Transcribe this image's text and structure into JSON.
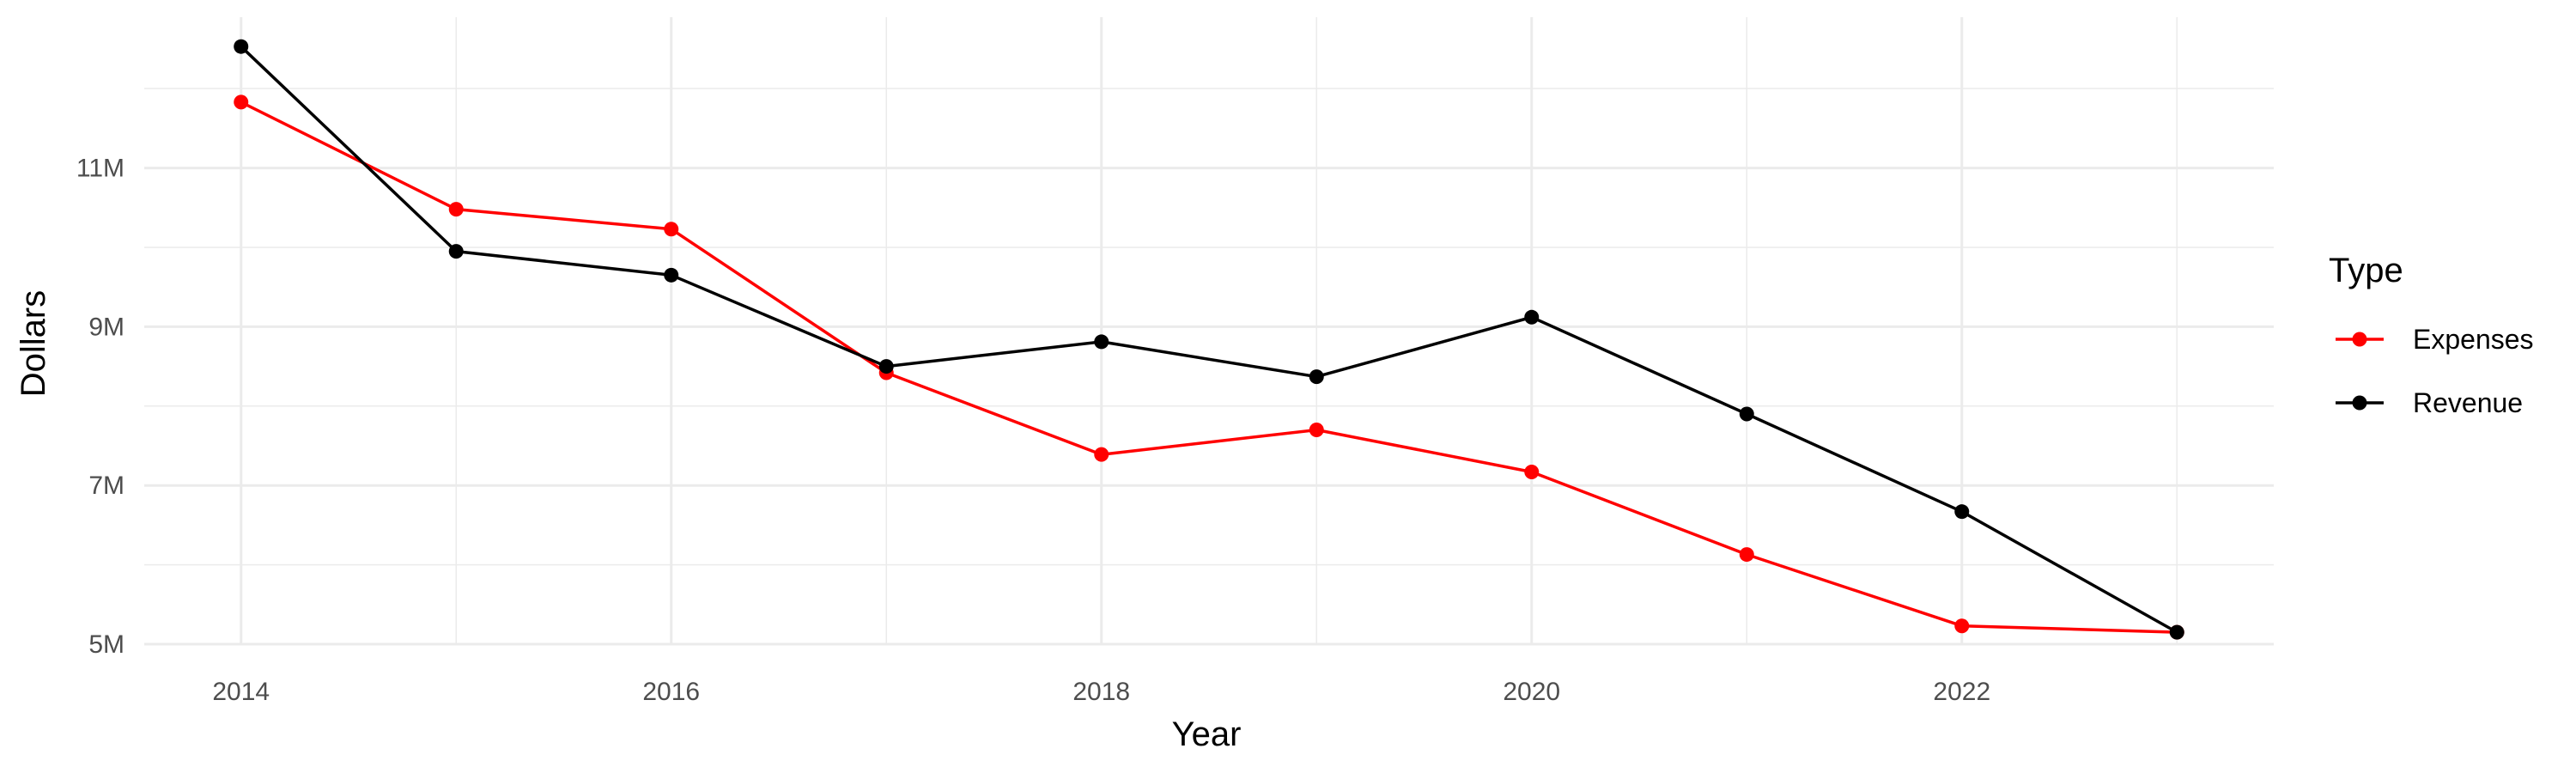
{
  "chart_data": {
    "type": "line",
    "title": "",
    "xlabel": "Year",
    "ylabel": "Dollars",
    "x": [
      2014,
      2015,
      2016,
      2017,
      2018,
      2019,
      2020,
      2021,
      2022,
      2023
    ],
    "x_ticks": [
      2014,
      2016,
      2018,
      2020,
      2022
    ],
    "x_tick_labels": [
      "2014",
      "2016",
      "2018",
      "2020",
      "2022"
    ],
    "xlim": [
      2013.55,
      2023.45
    ],
    "y_ticks": [
      5000000,
      7000000,
      9000000,
      11000000
    ],
    "y_tick_labels": [
      "5M",
      "7M",
      "9M",
      "11M"
    ],
    "ylim": [
      5000000,
      12900000
    ],
    "grid": true,
    "legend_title": "Type",
    "legend_position": "right",
    "series": [
      {
        "name": "Expenses",
        "color": "#ff0000",
        "values": [
          11830000,
          10480000,
          10230000,
          8420000,
          7390000,
          7700000,
          7170000,
          6130000,
          5230000,
          5150000
        ]
      },
      {
        "name": "Revenue",
        "color": "#000000",
        "values": [
          12530000,
          9950000,
          9650000,
          8500000,
          8810000,
          8370000,
          9120000,
          7900000,
          6670000,
          5150000
        ]
      }
    ]
  }
}
